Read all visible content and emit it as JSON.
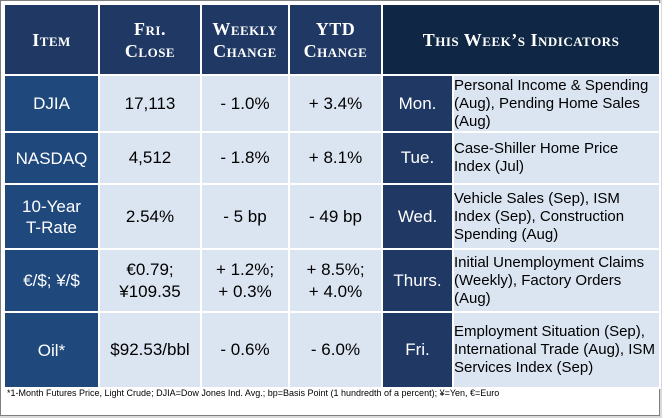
{
  "header": {
    "item": "Item",
    "fri_close": [
      "Fri.",
      "Close"
    ],
    "weekly_change": [
      "Weekly",
      "Change"
    ],
    "ytd_change": [
      "YTD",
      "Change"
    ],
    "indicators": "This Week’s Indicators"
  },
  "rows": [
    {
      "item": [
        "DJIA"
      ],
      "close": [
        "17,113"
      ],
      "weekly": [
        "- 1.0%"
      ],
      "ytd": [
        "+ 3.4%"
      ],
      "day": "Mon.",
      "indicators": "Personal Income & Spending (Aug), Pending Home Sales (Aug)"
    },
    {
      "item": [
        "NASDAQ"
      ],
      "close": [
        "4,512"
      ],
      "weekly": [
        "- 1.8%"
      ],
      "ytd": [
        "+ 8.1%"
      ],
      "day": "Tue.",
      "indicators": "Case-Shiller Home Price Index (Jul)"
    },
    {
      "item": [
        "10-Year",
        "T-Rate"
      ],
      "close": [
        "2.54%"
      ],
      "weekly": [
        "- 5 bp"
      ],
      "ytd": [
        "- 49 bp"
      ],
      "day": "Wed.",
      "indicators": "Vehicle Sales (Sep), ISM Index (Sep), Construction Spending (Aug)"
    },
    {
      "item": [
        "€/$; ¥/$"
      ],
      "close": [
        "€0.79;",
        "¥109.35"
      ],
      "weekly": [
        "+ 1.2%;",
        "+ 0.3%"
      ],
      "ytd": [
        "+ 8.5%;",
        "+ 4.0%"
      ],
      "day": "Thurs.",
      "indicators": "Initial Unemployment Claims (Weekly), Factory Orders (Aug)"
    },
    {
      "item": [
        "Oil*"
      ],
      "close": [
        "$92.53/bbl"
      ],
      "weekly": [
        "- 0.6%"
      ],
      "ytd": [
        "- 6.0%"
      ],
      "day": "Fri.",
      "indicators": "Employment Situation (Sep), International Trade (Aug), ISM Services Index (Sep)"
    }
  ],
  "footnote": "*1-Month Futures Price, Light Crude; DJIA=Dow Jones Ind. Avg.; bp=Basis Point (1 hundredth of a percent); ¥=Yen, €=Euro"
}
